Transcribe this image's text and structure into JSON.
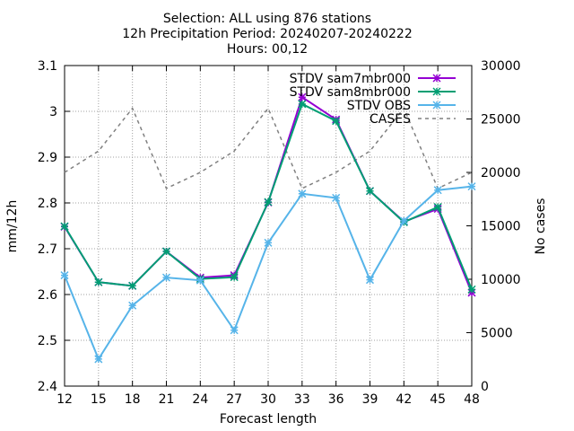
{
  "title_lines": [
    "Selection: ALL using   876 stations",
    "12h Precipitation   Period: 20240207-20240222",
    "Hours: 00,12"
  ],
  "chart_data": {
    "type": "line",
    "xlabel": "Forecast length",
    "ylabel": "mm/12h",
    "y2label": "No cases",
    "x": [
      12,
      15,
      18,
      21,
      24,
      27,
      30,
      33,
      36,
      39,
      42,
      45,
      48
    ],
    "xlim": [
      12,
      48
    ],
    "ylim": [
      2.4,
      3.1
    ],
    "y2lim": [
      0,
      30000
    ],
    "x_ticks": [
      "12",
      "15",
      "18",
      "21",
      "24",
      "27",
      "30",
      "33",
      "36",
      "39",
      "42",
      "45",
      "48"
    ],
    "y_ticks": [
      "2.4",
      "2.5",
      "2.6",
      "2.7",
      "2.8",
      "2.9",
      "3",
      "3.1"
    ],
    "y2_ticks": [
      "0",
      "5000",
      "10000",
      "15000",
      "20000",
      "25000",
      "30000"
    ],
    "grid": true,
    "legend_position": "top-right",
    "series": [
      {
        "name": "STDV sam7mbr000",
        "axis": "y",
        "color": "#9400d3",
        "style": "solid",
        "marker": "x",
        "values": [
          2.748,
          2.627,
          2.619,
          2.694,
          2.637,
          2.642,
          2.801,
          3.031,
          2.982,
          2.826,
          2.759,
          2.787,
          2.604
        ]
      },
      {
        "name": "STDV sam8mbr000",
        "axis": "y",
        "color": "#009e73",
        "style": "solid",
        "marker": "x",
        "values": [
          2.749,
          2.627,
          2.619,
          2.694,
          2.634,
          2.638,
          2.802,
          3.016,
          2.979,
          2.826,
          2.758,
          2.791,
          2.611
        ]
      },
      {
        "name": "STDV OBS",
        "axis": "y",
        "color": "#56b4e9",
        "style": "solid",
        "marker": "x",
        "values": [
          2.642,
          2.459,
          2.576,
          2.637,
          2.631,
          2.522,
          2.713,
          2.82,
          2.811,
          2.632,
          2.761,
          2.828,
          2.836
        ]
      },
      {
        "name": "CASES",
        "axis": "y2",
        "color": "#808080",
        "style": "dashed",
        "marker": "none",
        "values": [
          20000,
          22000,
          26000,
          18500,
          20000,
          22000,
          26000,
          18500,
          20000,
          22000,
          26000,
          18500,
          20000
        ]
      }
    ]
  }
}
